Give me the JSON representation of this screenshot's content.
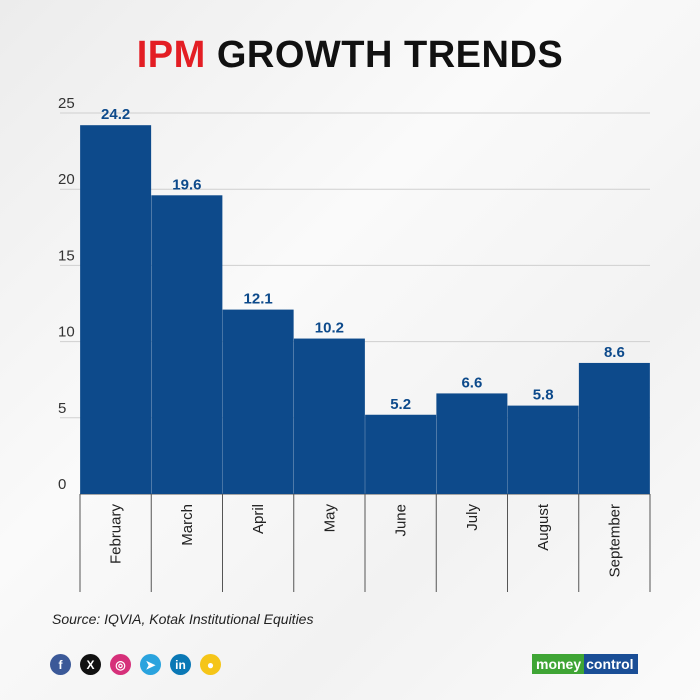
{
  "title": {
    "highlight": "IPM",
    "rest": "GROWTH TRENDS"
  },
  "chart_data": {
    "type": "bar",
    "categories": [
      "February",
      "March",
      "April",
      "May",
      "June",
      "July",
      "August",
      "September"
    ],
    "values": [
      24.2,
      19.6,
      12.1,
      10.2,
      5.2,
      6.6,
      5.8,
      8.6
    ],
    "data_labels": [
      "24.2",
      "19.6",
      "12.1",
      "10.2",
      "5.2",
      "6.6",
      "5.8",
      "8.6"
    ],
    "ylim": [
      0,
      25
    ],
    "yticks": [
      "0",
      "5",
      "10",
      "15",
      "20",
      "25"
    ],
    "grid": true,
    "bar_color": "#0d4a8b",
    "label_color": "#0d4a8b"
  },
  "source": "Source: IQVIA, Kotak Institutional Equities",
  "social": [
    {
      "icon": "facebook-icon",
      "glyph": "f",
      "color": "#3b5998"
    },
    {
      "icon": "x-icon",
      "glyph": "X",
      "color": "#111111"
    },
    {
      "icon": "instagram-icon",
      "glyph": "◎",
      "color": "#d6307a"
    },
    {
      "icon": "telegram-icon",
      "glyph": "➤",
      "color": "#2aa3de"
    },
    {
      "icon": "linkedin-icon",
      "glyph": "in",
      "color": "#0a78b5"
    },
    {
      "icon": "koo-icon",
      "glyph": "●",
      "color": "#f5c518"
    }
  ],
  "logo": {
    "part1": "money",
    "part2": "control"
  }
}
